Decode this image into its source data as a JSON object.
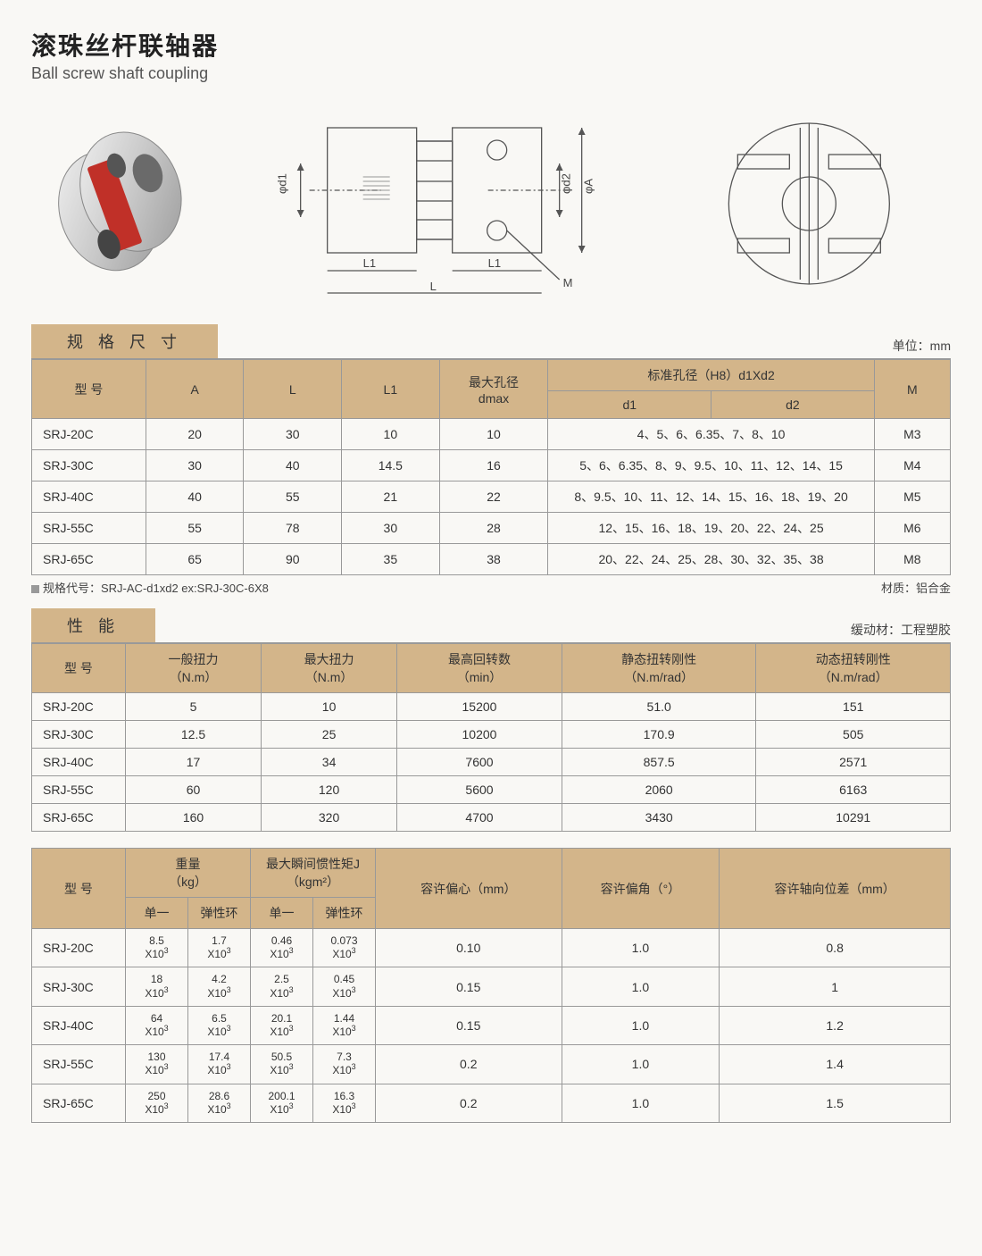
{
  "title": {
    "ch": "滚珠丝杆联轴器",
    "en": "Ball screw shaft coupling"
  },
  "sections": {
    "spec": {
      "label": "规 格 尺 寸",
      "unit_note": "单位：mm"
    },
    "perf": {
      "label": "性 能",
      "unit_note": "缓动材：工程塑胶"
    }
  },
  "diagram_labels": {
    "d1": "φd1",
    "d2": "φd2",
    "A": "φA",
    "L": "L",
    "L1": "L1",
    "M": "M"
  },
  "spec_table": {
    "columns": {
      "model": "型 号",
      "A": "A",
      "L": "L",
      "L1": "L1",
      "dmax": "最大孔径\ndmax",
      "std_bore": "标准孔径（H8）d1Xd2",
      "d1": "d1",
      "d2": "d2",
      "M": "M"
    },
    "rows": [
      {
        "model": "SRJ-20C",
        "A": "20",
        "L": "30",
        "L1": "10",
        "dmax": "10",
        "bore": "4、5、6、6.35、7、8、10",
        "M": "M3"
      },
      {
        "model": "SRJ-30C",
        "A": "30",
        "L": "40",
        "L1": "14.5",
        "dmax": "16",
        "bore": "5、6、6.35、8、9、9.5、10、11、12、14、15",
        "M": "M4"
      },
      {
        "model": "SRJ-40C",
        "A": "40",
        "L": "55",
        "L1": "21",
        "dmax": "22",
        "bore": "8、9.5、10、11、12、14、15、16、18、19、20",
        "M": "M5"
      },
      {
        "model": "SRJ-55C",
        "A": "55",
        "L": "78",
        "L1": "30",
        "dmax": "28",
        "bore": "12、15、16、18、19、20、22、24、25",
        "M": "M6"
      },
      {
        "model": "SRJ-65C",
        "A": "65",
        "L": "90",
        "L1": "35",
        "dmax": "38",
        "bore": "20、22、24、25、28、30、32、35、38",
        "M": "M8"
      }
    ]
  },
  "spec_footer": {
    "left": "规格代号：SRJ-AC-d1xd2    ex:SRJ-30C-6X8",
    "right": "材质：铝合金"
  },
  "perf_table": {
    "columns": {
      "model": "型 号",
      "torque_n": "一般扭力\n（N.m）",
      "torque_m": "最大扭力\n（N.m）",
      "rpm": "最高回转数\n（min）",
      "static": "静态扭转刚性\n（N.m/rad）",
      "dynamic": "动态扭转刚性\n（N.m/rad）"
    },
    "rows": [
      {
        "model": "SRJ-20C",
        "tn": "5",
        "tm": "10",
        "rpm": "15200",
        "s": "51.0",
        "d": "151"
      },
      {
        "model": "SRJ-30C",
        "tn": "12.5",
        "tm": "25",
        "rpm": "10200",
        "s": "170.9",
        "d": "505"
      },
      {
        "model": "SRJ-40C",
        "tn": "17",
        "tm": "34",
        "rpm": "7600",
        "s": "857.5",
        "d": "2571"
      },
      {
        "model": "SRJ-55C",
        "tn": "60",
        "tm": "120",
        "rpm": "5600",
        "s": "2060",
        "d": "6163"
      },
      {
        "model": "SRJ-65C",
        "tn": "160",
        "tm": "320",
        "rpm": "4700",
        "s": "3430",
        "d": "10291"
      }
    ]
  },
  "mass_table": {
    "columns": {
      "model": "型 号",
      "weight": "重量\n（kg）",
      "inertia": "最大瞬间惯性矩J\n（kgm²）",
      "single": "单一",
      "elastic": "弹性环",
      "ecc": "容许偏心（mm）",
      "ang": "容许偏角（°）",
      "axial": "容许轴向位差（mm）"
    },
    "rows": [
      {
        "model": "SRJ-20C",
        "w1": "8.5",
        "w2": "1.7",
        "j1": "0.46",
        "j2": "0.073",
        "ecc": "0.10",
        "ang": "1.0",
        "ax": "0.8"
      },
      {
        "model": "SRJ-30C",
        "w1": "18",
        "w2": "4.2",
        "j1": "2.5",
        "j2": "0.45",
        "ecc": "0.15",
        "ang": "1.0",
        "ax": "1"
      },
      {
        "model": "SRJ-40C",
        "w1": "64",
        "w2": "6.5",
        "j1": "20.1",
        "j2": "1.44",
        "ecc": "0.15",
        "ang": "1.0",
        "ax": "1.2"
      },
      {
        "model": "SRJ-55C",
        "w1": "130",
        "w2": "17.4",
        "j1": "50.5",
        "j2": "7.3",
        "ecc": "0.2",
        "ang": "1.0",
        "ax": "1.4"
      },
      {
        "model": "SRJ-65C",
        "w1": "250",
        "w2": "28.6",
        "j1": "200.1",
        "j2": "16.3",
        "ecc": "0.2",
        "ang": "1.0",
        "ax": "1.5"
      }
    ],
    "x10_label": "X10",
    "x10_sup": "3"
  },
  "colors": {
    "tab_bg": "#d3b58a",
    "border": "#999999",
    "page_bg": "#f9f8f5",
    "coupling_body": "#cfcfcf",
    "coupling_spider": "#c03028"
  }
}
